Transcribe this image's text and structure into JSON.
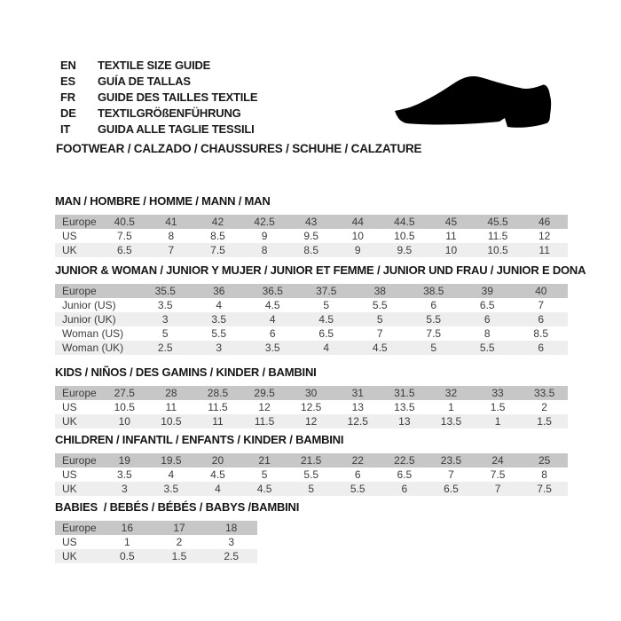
{
  "title_block": {
    "languages": [
      {
        "code": "EN",
        "label": "TEXTILE SIZE GUIDE"
      },
      {
        "code": "ES",
        "label": "GUÍA DE TALLAS"
      },
      {
        "code": "FR",
        "label": "GUIDE DES TAILLES TEXTILE"
      },
      {
        "code": "DE",
        "label": "TEXTILGRÖßENFÜHRUNG"
      },
      {
        "code": "IT",
        "label": "GUIDA ALLE TAGLIE TESSILI"
      }
    ],
    "category": "FOOTWEAR / CALZADO / CHAUSSURES / SCHUHE / CALZATURE"
  },
  "icons": {
    "shoe": "dress-shoe-silhouette"
  },
  "colors": {
    "header_row": "#c7c7c7",
    "alt_row": "#eeeeee",
    "row_text": "#3c3c3c",
    "title_text": "#161616",
    "shoe": "#000000"
  },
  "chart_data": {
    "type": "table",
    "note": "see tables"
  },
  "tables": [
    {
      "id": "man",
      "title": "MAN / HOMBRE / HOMME / MANN / MAN",
      "rows": [
        {
          "label": "Europe",
          "values": [
            "40.5",
            "41",
            "42",
            "42.5",
            "43",
            "44",
            "44.5",
            "45",
            "45.5",
            "46"
          ]
        },
        {
          "label": "US",
          "values": [
            "7.5",
            "8",
            "8.5",
            "9",
            "9.5",
            "10",
            "10.5",
            "11",
            "11.5",
            "12"
          ]
        },
        {
          "label": "UK",
          "values": [
            "6.5",
            "7",
            "7.5",
            "8",
            "8.5",
            "9",
            "9.5",
            "10",
            "10.5",
            "11"
          ]
        }
      ]
    },
    {
      "id": "junior-woman",
      "title": "JUNIOR & WOMAN / JUNIOR Y MUJER / JUNIOR ET FEMME / JUNIOR UND FRAU / JUNIOR E DONA",
      "rows": [
        {
          "label": "Europe",
          "values": [
            "35.5",
            "36",
            "36.5",
            "37.5",
            "38",
            "38.5",
            "39",
            "40"
          ]
        },
        {
          "label": "Junior (US)",
          "values": [
            "3.5",
            "4",
            "4.5",
            "5",
            "5.5",
            "6",
            "6.5",
            "7"
          ]
        },
        {
          "label": "Junior (UK)",
          "values": [
            "3",
            "3.5",
            "4",
            "4.5",
            "5",
            "5.5",
            "6",
            "6"
          ]
        },
        {
          "label": "Woman (US)",
          "values": [
            "5",
            "5.5",
            "6",
            "6.5",
            "7",
            "7.5",
            "8",
            "8.5"
          ]
        },
        {
          "label": "Woman (UK)",
          "values": [
            "2.5",
            "3",
            "3.5",
            "4",
            "4.5",
            "5",
            "5.5",
            "6"
          ]
        }
      ]
    },
    {
      "id": "kids",
      "title": "KIDS / NIÑOS / DES GAMINS / KINDER / BAMBINI",
      "rows": [
        {
          "label": "Europe",
          "values": [
            "27.5",
            "28",
            "28.5",
            "29.5",
            "30",
            "31",
            "31.5",
            "32",
            "33",
            "33.5"
          ]
        },
        {
          "label": "US",
          "values": [
            "10.5",
            "11",
            "11.5",
            "12",
            "12.5",
            "13",
            "13.5",
            "1",
            "1.5",
            "2"
          ]
        },
        {
          "label": "UK",
          "values": [
            "10",
            "10.5",
            "11",
            "11.5",
            "12",
            "12.5",
            "13",
            "13.5",
            "1",
            "1.5"
          ]
        }
      ]
    },
    {
      "id": "children",
      "title": "CHILDREN / INFANTIL / ENFANTS / KINDER / BAMBINI",
      "rows": [
        {
          "label": "Europe",
          "values": [
            "19",
            "19.5",
            "20",
            "21",
            "21.5",
            "22",
            "22.5",
            "23.5",
            "24",
            "25"
          ]
        },
        {
          "label": "US",
          "values": [
            "3.5",
            "4",
            "4.5",
            "5",
            "5.5",
            "6",
            "6.5",
            "7",
            "7.5",
            "8"
          ]
        },
        {
          "label": "UK",
          "values": [
            "3",
            "3.5",
            "4",
            "4.5",
            "5",
            "5.5",
            "6",
            "6.5",
            "7",
            "7.5"
          ]
        }
      ]
    },
    {
      "id": "babies",
      "title": "BABIES  / BEBÉS / BÉBÉS / BABYS /BAMBINI",
      "rows": [
        {
          "label": "Europe",
          "values": [
            "16",
            "17",
            "18"
          ]
        },
        {
          "label": "US",
          "values": [
            "1",
            "2",
            "3"
          ]
        },
        {
          "label": "UK",
          "values": [
            "0.5",
            "1.5",
            "2.5"
          ]
        }
      ]
    }
  ]
}
